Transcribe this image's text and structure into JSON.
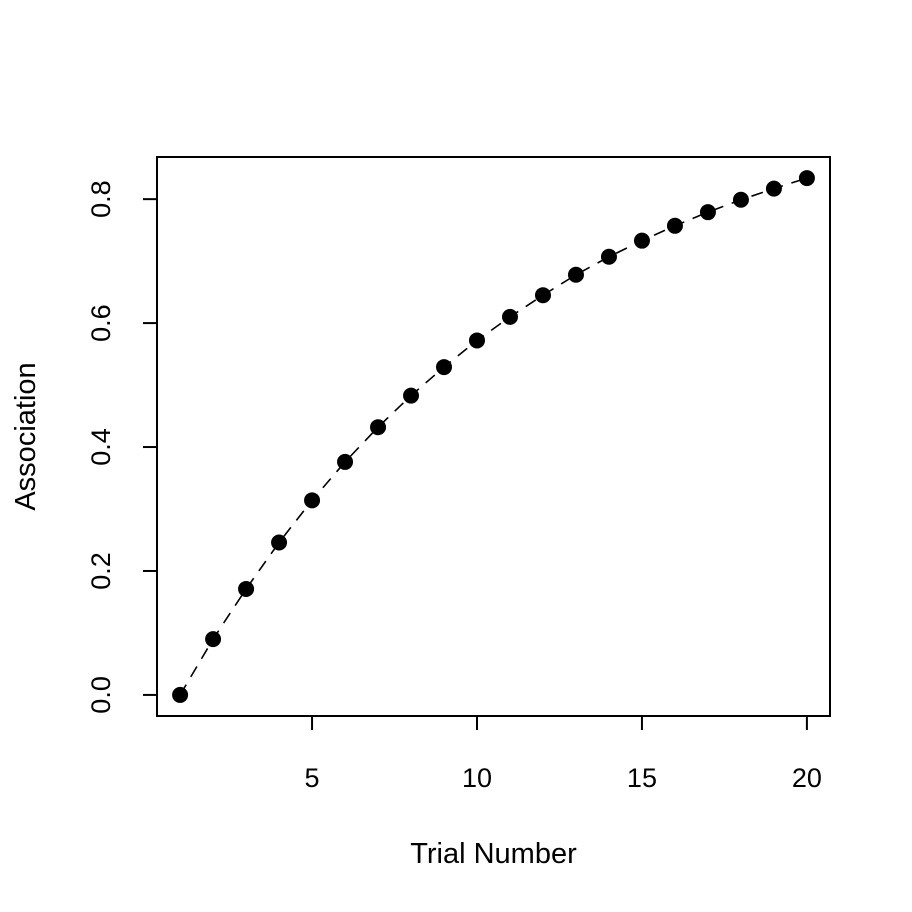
{
  "chart_data": {
    "type": "scatter",
    "title": "",
    "xlabel": "Trial Number",
    "ylabel": "Association",
    "xlim": [
      0.3,
      20.7
    ],
    "ylim": [
      -0.034,
      0.868
    ],
    "xticks": [
      5,
      10,
      15,
      20
    ],
    "yticks": [
      0.0,
      0.2,
      0.4,
      0.6,
      0.8
    ],
    "xtick_labels": [
      "5",
      "10",
      "15",
      "20"
    ],
    "ytick_labels": [
      "0.0",
      "0.2",
      "0.4",
      "0.6",
      "0.8"
    ],
    "grid": false,
    "legend": "none",
    "line_style": "dashed",
    "point_color": "#000000",
    "line_color": "#000000",
    "x": [
      1,
      2,
      3,
      4,
      5,
      6,
      7,
      8,
      9,
      10,
      11,
      12,
      13,
      14,
      15,
      16,
      17,
      18,
      19,
      20
    ],
    "y": [
      0.0,
      0.09,
      0.171,
      0.246,
      0.314,
      0.376,
      0.432,
      0.483,
      0.529,
      0.572,
      0.61,
      0.645,
      0.678,
      0.707,
      0.733,
      0.757,
      0.779,
      0.799,
      0.817,
      0.834
    ]
  }
}
